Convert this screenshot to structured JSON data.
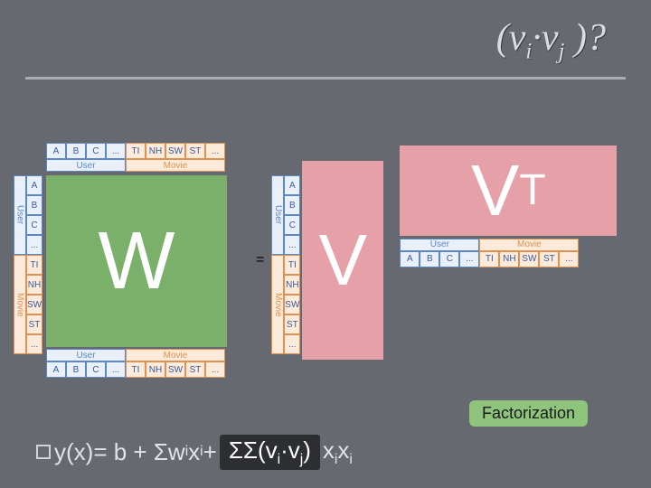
{
  "colors": {
    "slide_bg": "#66696f",
    "title_text": "#d8dde3",
    "title_shadow": "#3a3c40",
    "underline": "#a9adb4",
    "w_fill": "#7bb06a",
    "w_text": "#ffffff",
    "v_fill": "#e6a0a8",
    "v_text": "#ffffff",
    "vt_fill": "#e6a0a8",
    "border_blue": "#5b87c7",
    "border_orange": "#e09050",
    "header_bg": "#eaf0fa",
    "header_bg_orange": "#fcebda",
    "formula_text": "#e0e3e8",
    "pill_bg": "#2d2e31",
    "pill_text": "#ffffff",
    "fact_bg": "#8fc47c",
    "fact_text": "#1a1a1a",
    "checkbox_border": "#d0d3d8"
  },
  "title": {
    "prefix": "(v",
    "sub1": "i",
    "dot": "·",
    "mid": "v",
    "sub2": "j",
    "suffix": " )?"
  },
  "labels": {
    "user_cols": [
      "A",
      "B",
      "C",
      "..."
    ],
    "user_group": "User",
    "movie_cols": [
      "TI",
      "NH",
      "SW",
      "ST",
      "..."
    ],
    "movie_group": "Movie"
  },
  "letters": {
    "W": "W",
    "V": "V",
    "VT_base": "V",
    "VT_sup": "T",
    "equals": "="
  },
  "factorization_label": "Factorization",
  "formula": {
    "yx": "y(x)",
    "eq": " = b + Σw",
    "sub_i": "i",
    "x": "x",
    "plus": " + ",
    "sumsum": "ΣΣ(v",
    "dot": "·",
    "v": "v",
    "sub_j": "j",
    "close": ")",
    "xixi_x1": "x",
    "xixi_x2": "x"
  }
}
